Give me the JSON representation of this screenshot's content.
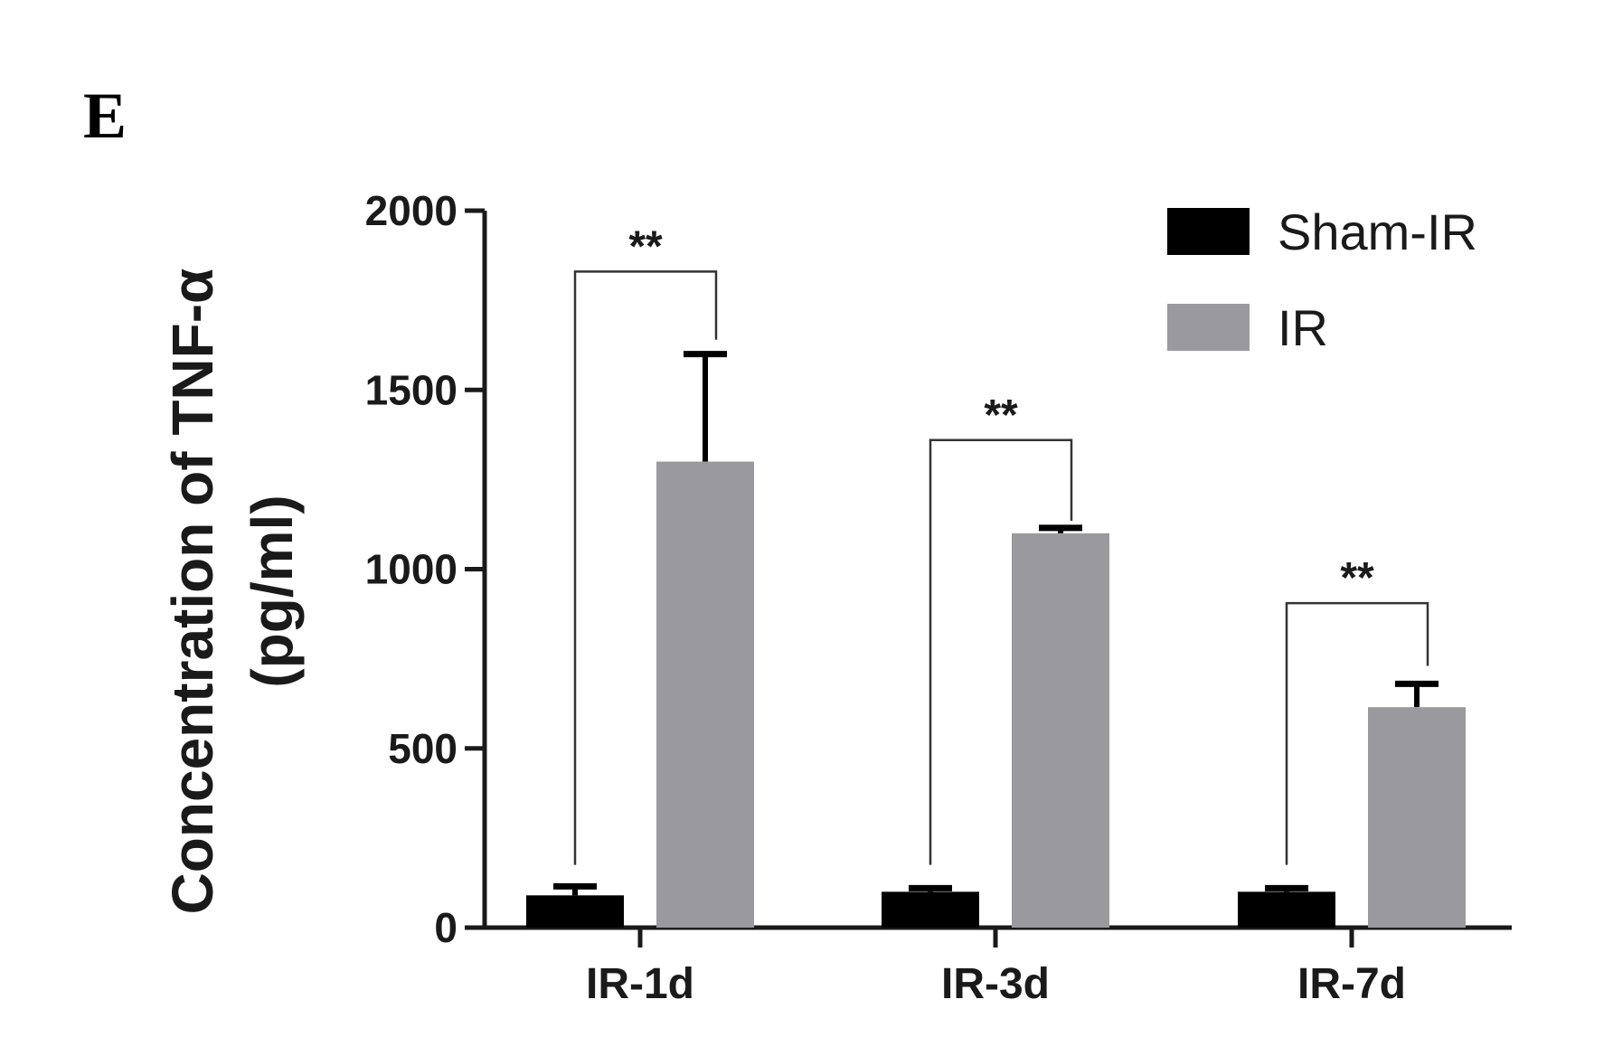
{
  "panel_label": "E",
  "chart_data": {
    "type": "bar",
    "categories": [
      "IR-1d",
      "IR-3d",
      "IR-7d"
    ],
    "series": [
      {
        "name": "Sham-IR",
        "values": [
          90,
          100,
          100
        ],
        "errors": [
          25,
          10,
          10
        ],
        "color": "#000000"
      },
      {
        "name": "IR",
        "values": [
          1300,
          1100,
          615
        ],
        "errors": [
          300,
          15,
          65
        ],
        "color": "#9a9a9e"
      }
    ],
    "ylabel_line1": "Concentration of TNF-α",
    "ylabel_line2": "(pg/ml)",
    "xlabel": "",
    "ylim": [
      0,
      2000
    ],
    "yticks": [
      0,
      500,
      1000,
      1500,
      2000
    ],
    "legend_position": "top-right",
    "grid": false,
    "significance": [
      {
        "category": "IR-1d",
        "label": "**",
        "left_level": 175,
        "right_level": 1640,
        "bracket_level": 1830
      },
      {
        "category": "IR-3d",
        "label": "**",
        "left_level": 175,
        "right_level": 1135,
        "bracket_level": 1360
      },
      {
        "category": "IR-7d",
        "label": "**",
        "left_level": 175,
        "right_level": 730,
        "bracket_level": 905
      }
    ]
  }
}
